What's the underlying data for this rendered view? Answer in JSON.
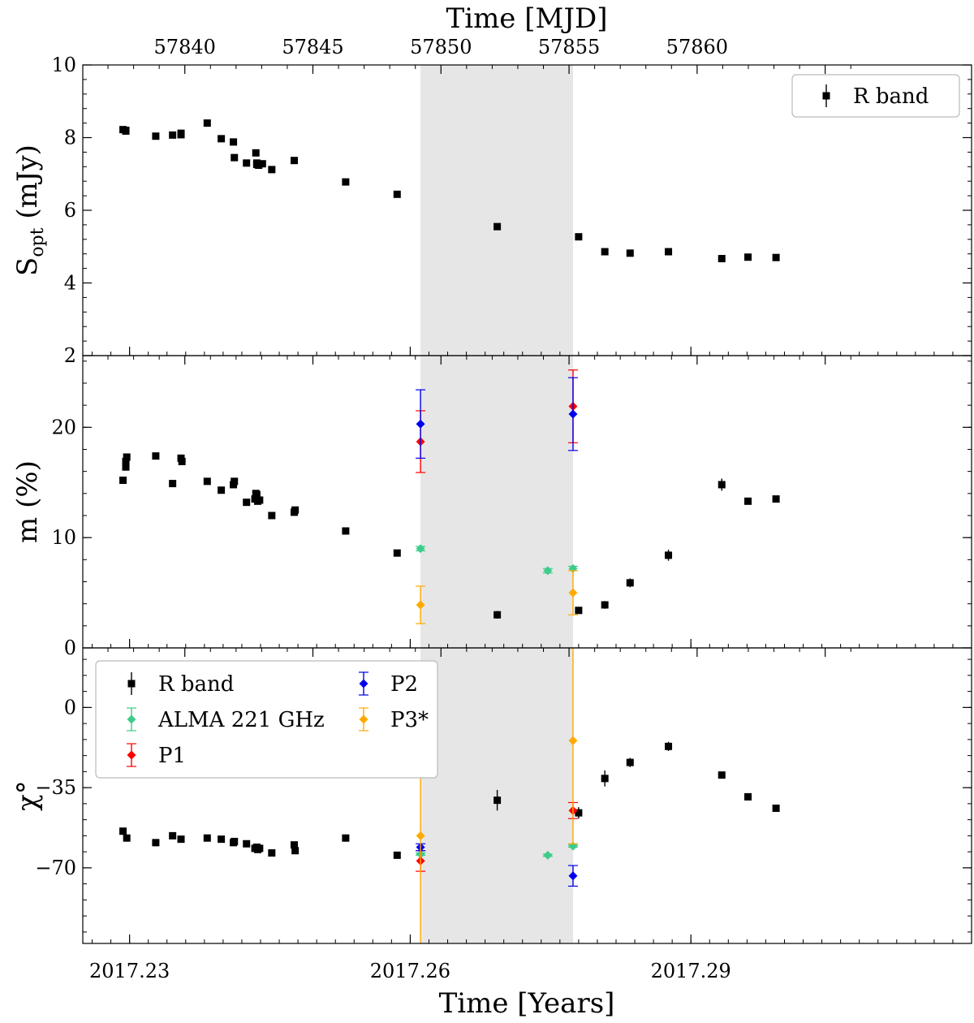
{
  "chart_data": {
    "type": "scatter",
    "x_axis": {
      "label": "Time [Years]",
      "range": [
        2017.225,
        2017.32
      ],
      "ticks": [
        2017.23,
        2017.26,
        2017.29
      ],
      "tick_labels": [
        "2017.23",
        "2017.26",
        "2017.29"
      ]
    },
    "top_axis": {
      "label": "Time [MJD]",
      "ticks": [
        57840,
        57845,
        57850,
        57855,
        57860
      ],
      "tick_labels": [
        "57840",
        "57845",
        "57850",
        "57855",
        "57860"
      ],
      "mjd_at_year_2017_26": 57848.8,
      "days_per_year": 365.25
    },
    "shaded_region": [
      2017.2611,
      2017.2774
    ],
    "colors": {
      "R band": "#000000",
      "ALMA 221 GHz": "#3ecc8a",
      "P1": "#ff0000",
      "P2": "#0000ee",
      "P3*": "#ffaa00",
      "shade": "#e6e6e6"
    },
    "panels": [
      {
        "id": "flux",
        "ylabel": "S",
        "ylabel_sub": "opt",
        "ylabel_tail": " (mJy)",
        "ylim": [
          2,
          10
        ],
        "yticks": [
          2,
          4,
          6,
          8,
          10
        ],
        "ytick_labels": [
          "2",
          "4",
          "6",
          "8",
          "10"
        ],
        "legend": {
          "position": "top-right",
          "entries": [
            {
              "name": "R band"
            }
          ]
        },
        "series": [
          {
            "name": "R band",
            "marker": "square",
            "x": [
              2017.2293,
              2017.2296,
              2017.2328,
              2017.2346,
              2017.2355,
              2017.2383,
              2017.2398,
              2017.2411,
              2017.2412,
              2017.2425,
              2017.2435,
              2017.2436,
              2017.2438,
              2017.2442,
              2017.2452,
              2017.2476,
              2017.2531,
              2017.2586,
              2017.2693,
              2017.278,
              2017.2808,
              2017.2835,
              2017.2876,
              2017.2933,
              2017.2961,
              2017.2991
            ],
            "y": [
              8.22,
              8.18,
              8.04,
              8.07,
              8.12,
              8.4,
              7.97,
              7.88,
              7.45,
              7.3,
              7.58,
              7.3,
              7.24,
              7.28,
              7.12,
              7.37,
              6.78,
              6.44,
              5.55,
              5.27,
              4.86,
              4.82,
              4.86,
              4.67,
              4.71,
              4.7
            ],
            "yerr": [
              0.09,
              0.09,
              0.09,
              0.09,
              0.09,
              0.09,
              0.09,
              0.09,
              0.09,
              0.09,
              0.09,
              0.09,
              0.09,
              0.09,
              0.09,
              0.09,
              0.09,
              0.09,
              0.09,
              0.09,
              0.09,
              0.09,
              0.09,
              0.09,
              0.09,
              0.09
            ]
          },
          {
            "name": "R band",
            "marker": "square",
            "x": [
              2017.2296,
              2017.2355,
              2017.2436
            ],
            "y": [
              8.2,
              8.08,
              7.26
            ],
            "yerr": [
              0.09,
              0.09,
              0.09
            ]
          }
        ]
      },
      {
        "id": "pol",
        "ylabel": "m (%)",
        "ylim": [
          0,
          26.5
        ],
        "yticks": [
          0,
          10,
          20
        ],
        "ytick_labels": [
          "0",
          "10",
          "20"
        ],
        "series": [
          {
            "name": "R band",
            "marker": "square",
            "x": [
              2017.2293,
              2017.2296,
              2017.2296,
              2017.2297,
              2017.2328,
              2017.2346,
              2017.2355,
              2017.2356,
              2017.2383,
              2017.2398,
              2017.2411,
              2017.2412,
              2017.2425,
              2017.2434,
              2017.2435,
              2017.2436,
              2017.2437,
              2017.2439,
              2017.2452,
              2017.2476,
              2017.2477,
              2017.2531,
              2017.2586,
              2017.2693,
              2017.278,
              2017.2808,
              2017.2835,
              2017.2876,
              2017.2933,
              2017.2961,
              2017.2991
            ],
            "y": [
              15.2,
              16.4,
              16.9,
              17.3,
              17.4,
              14.9,
              17.2,
              16.9,
              15.1,
              14.3,
              14.8,
              15.1,
              13.2,
              13.5,
              14.0,
              13.9,
              13.3,
              13.4,
              12.0,
              12.3,
              12.5,
              10.6,
              8.6,
              3.0,
              3.4,
              3.9,
              5.9,
              8.4,
              14.8,
              13.3,
              13.5
            ],
            "yerr": [
              0.25,
              0.25,
              0.25,
              0.25,
              0.25,
              0.25,
              0.25,
              0.25,
              0.25,
              0.25,
              0.25,
              0.25,
              0.25,
              0.25,
              0.25,
              0.25,
              0.25,
              0.25,
              0.25,
              0.25,
              0.25,
              0.25,
              0.3,
              0.35,
              0.3,
              0.35,
              0.4,
              0.5,
              0.55,
              0.3,
              0.3
            ]
          },
          {
            "name": "ALMA 221 GHz",
            "marker": "diamond",
            "x": [
              2017.2611,
              2017.2747,
              2017.2774
            ],
            "y": [
              9.0,
              7.0,
              7.2
            ],
            "yerr": [
              0.2,
              0.2,
              0.2
            ]
          },
          {
            "name": "P1",
            "marker": "diamond",
            "x": [
              2017.2611,
              2017.2774
            ],
            "y": [
              18.7,
              21.9
            ],
            "yerr": [
              2.8,
              3.3
            ]
          },
          {
            "name": "P2",
            "marker": "diamond",
            "x": [
              2017.2611,
              2017.2774
            ],
            "y": [
              20.3,
              21.2
            ],
            "yerr": [
              3.1,
              3.3
            ]
          },
          {
            "name": "P3*",
            "marker": "diamond",
            "x": [
              2017.2611,
              2017.2774
            ],
            "y": [
              3.9,
              5.0
            ],
            "yerr": [
              1.7,
              2.0
            ]
          }
        ]
      },
      {
        "id": "evpa",
        "ylabel": "χ°",
        "ylim": [
          -103,
          26
        ],
        "yticks": [
          -70,
          -35,
          0
        ],
        "ytick_labels": [
          "−70",
          "−35",
          "0"
        ],
        "legend": {
          "position": "top-left",
          "columns": 2,
          "entries": [
            {
              "name": "R band"
            },
            {
              "name": "ALMA 221 GHz"
            },
            {
              "name": "P1"
            },
            {
              "name": "P2"
            },
            {
              "name": "P3*"
            }
          ]
        },
        "series": [
          {
            "name": "R band",
            "marker": "square",
            "x": [
              2017.2293,
              2017.2297,
              2017.2328,
              2017.2346,
              2017.2355,
              2017.2383,
              2017.2398,
              2017.2411,
              2017.2412,
              2017.2425,
              2017.2434,
              2017.2436,
              2017.2437,
              2017.2439,
              2017.2452,
              2017.2476,
              2017.2477,
              2017.2531,
              2017.2586,
              2017.2693,
              2017.278,
              2017.2808,
              2017.2835,
              2017.2876,
              2017.2933,
              2017.2961,
              2017.2991
            ],
            "y": [
              -54.0,
              -57.0,
              -59.0,
              -56.0,
              -57.5,
              -57.0,
              -57.5,
              -59.0,
              -58.5,
              -59.5,
              -61.5,
              -61.0,
              -62.0,
              -61.5,
              -63.5,
              -60.0,
              -62.5,
              -57.0,
              -64.5,
              -40.5,
              -46.0,
              -31.0,
              -24.0,
              -17.0,
              -29.5,
              -39.0,
              -44.0
            ],
            "yerr": [
              0.8,
              0.8,
              0.8,
              0.8,
              0.8,
              0.8,
              0.8,
              0.8,
              0.8,
              0.8,
              0.8,
              0.8,
              0.8,
              0.8,
              0.8,
              0.8,
              0.8,
              0.8,
              0.8,
              4.5,
              2.5,
              3.5,
              2.0,
              2.0,
              0.8,
              0.8,
              0.8
            ]
          },
          {
            "name": "ALMA 221 GHz",
            "marker": "diamond",
            "x": [
              2017.2611,
              2017.2747,
              2017.2774
            ],
            "y": [
              -64.0,
              -64.5,
              -60.5
            ],
            "yerr": [
              0.5,
              0.5,
              0.5
            ]
          },
          {
            "name": "P1",
            "marker": "diamond",
            "x": [
              2017.2611,
              2017.2774
            ],
            "y": [
              -67.0,
              -45.0
            ],
            "yerr": [
              4.5,
              3.5
            ]
          },
          {
            "name": "P2",
            "marker": "diamond",
            "x": [
              2017.2611,
              2017.2774
            ],
            "y": [
              -61.0,
              -73.5
            ],
            "yerr": [
              1.5,
              4.5
            ]
          },
          {
            "name": "P3*",
            "marker": "diamond",
            "x": [
              2017.2611,
              2017.2774
            ],
            "y": [
              -56.0,
              -14.5
            ],
            "yerr": [
              49.0,
              45.0
            ]
          }
        ]
      }
    ]
  }
}
